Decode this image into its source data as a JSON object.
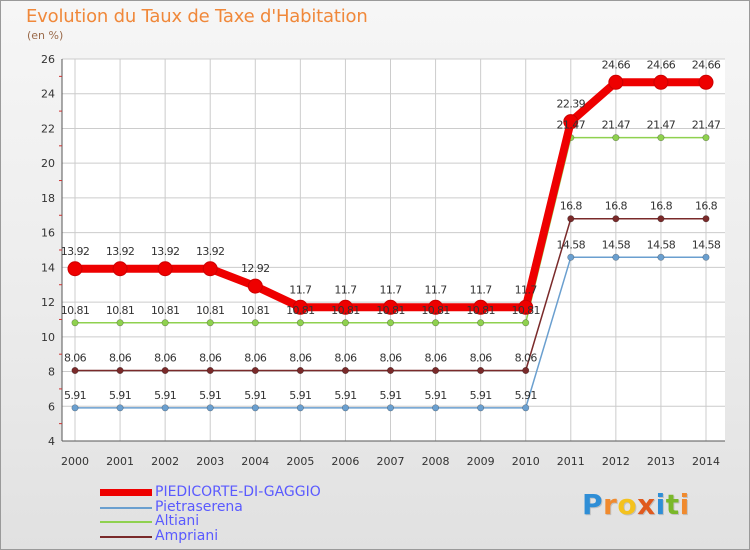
{
  "header": {
    "title": "Evolution du Taux de Taxe d'Habitation",
    "unit": "(en %)"
  },
  "logo": {
    "letters": [
      "P",
      "r",
      "o",
      "x",
      "i",
      "t",
      "i"
    ],
    "colors": [
      "#2f8ed6",
      "#f08a2e",
      "#f4c21e",
      "#e05a1e",
      "#2f8ed6",
      "#7ab82a",
      "#f08a2e"
    ]
  },
  "chart_data": {
    "type": "line",
    "title": "Evolution du Taux de Taxe d'Habitation",
    "ylabel": "(en %)",
    "xlabel": "",
    "x": [
      "2000",
      "2001",
      "2002",
      "2003",
      "2004",
      "2005",
      "2006",
      "2007",
      "2008",
      "2009",
      "2010",
      "2011",
      "2012",
      "2013",
      "2014"
    ],
    "ylim": [
      4,
      26
    ],
    "yticks": [
      "4",
      "6",
      "8",
      "10",
      "12",
      "14",
      "16",
      "18",
      "20",
      "22",
      "24",
      "26"
    ],
    "grid": true,
    "series": [
      {
        "name": "Ampriani",
        "color": "#7a2a2a",
        "values": [
          8.06,
          8.06,
          8.06,
          8.06,
          8.06,
          8.06,
          8.06,
          8.06,
          8.06,
          8.06,
          8.06,
          16.8,
          16.8,
          16.8,
          16.8
        ],
        "labels": [
          "8.06",
          "8.06",
          "8.06",
          "8.06",
          "8.06",
          "8.06",
          "8.06",
          "8.06",
          "8.06",
          "8.06",
          "8.06",
          "16.8",
          "16.8",
          "16.8",
          "16.8"
        ]
      },
      {
        "name": "Altiani",
        "color": "#8fd14f",
        "values": [
          10.81,
          10.81,
          10.81,
          10.81,
          10.81,
          10.81,
          10.81,
          10.81,
          10.81,
          10.81,
          10.81,
          21.47,
          21.47,
          21.47,
          21.47
        ],
        "labels": [
          "10.81",
          "10.81",
          "10.81",
          "10.81",
          "10.81",
          "10.81",
          "10.81",
          "10.81",
          "10.81",
          "10.81",
          "10.81",
          "21.47",
          "21.47",
          "21.47",
          "21.47"
        ]
      },
      {
        "name": "Pietraserena",
        "color": "#6a9fcf",
        "values": [
          5.91,
          5.91,
          5.91,
          5.91,
          5.91,
          5.91,
          5.91,
          5.91,
          5.91,
          5.91,
          5.91,
          14.58,
          14.58,
          14.58,
          14.58
        ],
        "labels": [
          "5.91",
          "5.91",
          "5.91",
          "5.91",
          "5.91",
          "5.91",
          "5.91",
          "5.91",
          "5.91",
          "5.91",
          "5.91",
          "14.58",
          "14.58",
          "14.58",
          "14.58"
        ]
      },
      {
        "name": "PIEDICORTE-DI-GAGGIO",
        "color": "#ee0000",
        "values": [
          13.92,
          13.92,
          13.92,
          13.92,
          12.92,
          11.7,
          11.7,
          11.7,
          11.7,
          11.7,
          11.7,
          22.39,
          24.66,
          24.66,
          24.66
        ],
        "labels": [
          "13.92",
          "13.92",
          "13.92",
          "13.92",
          "12.92",
          "11.7",
          "11.7",
          "11.7",
          "11.7",
          "11.7",
          "11.7",
          "22.39",
          "24.66",
          "24.66",
          "24.66"
        ]
      }
    ],
    "legend": [
      {
        "name": "PIEDICORTE-DI-GAGGIO",
        "color": "#ee0000"
      },
      {
        "name": "Pietraserena",
        "color": "#6a9fcf"
      },
      {
        "name": "Altiani",
        "color": "#8fd14f"
      },
      {
        "name": "Ampriani",
        "color": "#7a2a2a"
      }
    ],
    "legend_position": "bottom-left"
  }
}
